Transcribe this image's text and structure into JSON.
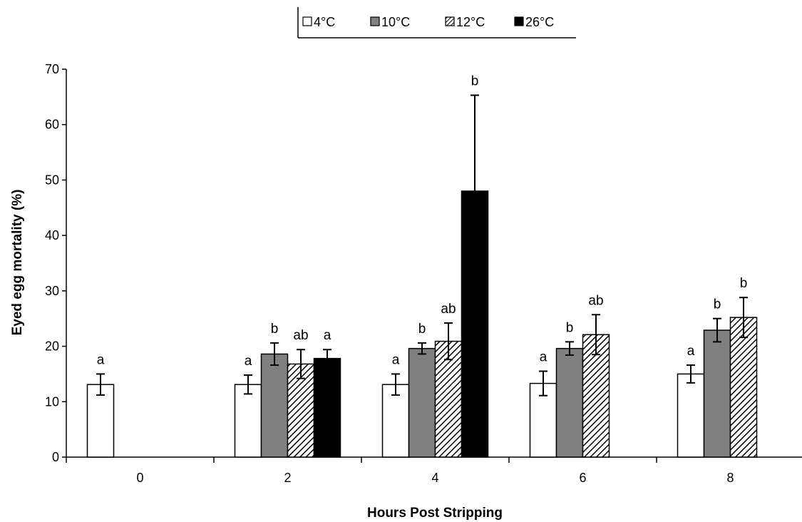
{
  "chart_data": {
    "type": "bar",
    "xlabel": "Hours Post Stripping",
    "ylabel": "Eyed egg mortality (%)",
    "ylim": [
      0,
      70
    ],
    "yticks": [
      0,
      10,
      20,
      30,
      40,
      50,
      60,
      70
    ],
    "categories": [
      "0",
      "2",
      "4",
      "6",
      "8"
    ],
    "legend_position": "top-center",
    "series": [
      {
        "name": "4°C",
        "fill": "white",
        "values": [
          13.1,
          13.1,
          13.1,
          13.3,
          15.0
        ],
        "errors": [
          1.9,
          1.7,
          1.9,
          2.2,
          1.6
        ],
        "labels": [
          "a",
          "a",
          "a",
          "a",
          "a"
        ]
      },
      {
        "name": "10°C",
        "fill": "gray",
        "values": [
          null,
          18.6,
          19.6,
          19.6,
          22.9
        ],
        "errors": [
          null,
          2.0,
          1.0,
          1.2,
          2.1
        ],
        "labels": [
          null,
          "b",
          "b",
          "b",
          "b"
        ]
      },
      {
        "name": "12°C",
        "fill": "hatched",
        "values": [
          null,
          16.8,
          20.9,
          22.1,
          25.2
        ],
        "errors": [
          null,
          2.6,
          3.3,
          3.6,
          3.6
        ],
        "labels": [
          null,
          "ab",
          "ab",
          "ab",
          "b"
        ]
      },
      {
        "name": "26°C",
        "fill": "black",
        "values": [
          null,
          17.8,
          48.0,
          null,
          null
        ],
        "errors": [
          null,
          1.6,
          17.3,
          null,
          null
        ],
        "labels": [
          null,
          "a",
          "b",
          null,
          null
        ]
      }
    ],
    "colors": {
      "white_fill": "#ffffff",
      "gray_fill": "#808080",
      "black_fill": "#000000",
      "outline": "#000000"
    }
  }
}
